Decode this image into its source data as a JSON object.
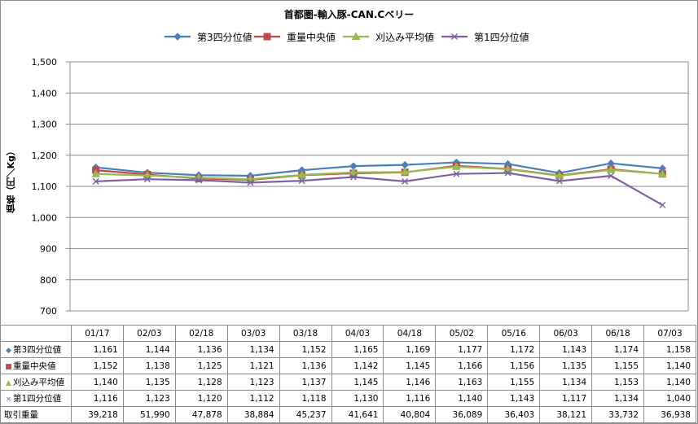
{
  "chart_data": {
    "type": "line",
    "title": "首都圏-輸入豚-CAN.Cベリー",
    "ylabel": "価格（円／Kg）",
    "ylim": [
      700,
      1500
    ],
    "yticks": [
      "1,500",
      "1,400",
      "1,300",
      "1,200",
      "1,100",
      "1,000",
      "900",
      "800",
      "700"
    ],
    "ytick_values": [
      1500,
      1400,
      1300,
      1200,
      1100,
      1000,
      900,
      800,
      700
    ],
    "grid": "horizontal",
    "legend_position": "top",
    "categories": [
      "01/17",
      "02/03",
      "02/18",
      "03/03",
      "03/18",
      "04/03",
      "04/18",
      "05/02",
      "05/16",
      "06/03",
      "06/18",
      "07/03"
    ],
    "series": [
      {
        "name": "第3四分位値",
        "marker": "diamond",
        "marker_symbol": "◆",
        "color": "#4a7ebb",
        "values": [
          1161,
          1144,
          1136,
          1134,
          1152,
          1165,
          1169,
          1177,
          1172,
          1143,
          1174,
          1158
        ],
        "labels": [
          "1,161",
          "1,144",
          "1,136",
          "1,134",
          "1,152",
          "1,165",
          "1,169",
          "1,177",
          "1,172",
          "1,143",
          "1,174",
          "1,158"
        ]
      },
      {
        "name": "重量中央値",
        "marker": "square",
        "marker_symbol": "■",
        "color": "#be4b48",
        "values": [
          1152,
          1138,
          1125,
          1121,
          1136,
          1142,
          1145,
          1166,
          1156,
          1135,
          1155,
          1140
        ],
        "labels": [
          "1,152",
          "1,138",
          "1,125",
          "1,121",
          "1,136",
          "1,142",
          "1,145",
          "1,166",
          "1,156",
          "1,135",
          "1,155",
          "1,140"
        ]
      },
      {
        "name": "刈込み平均値",
        "marker": "triangle",
        "marker_symbol": "▲",
        "color": "#98b954",
        "values": [
          1140,
          1135,
          1128,
          1123,
          1137,
          1145,
          1146,
          1163,
          1155,
          1134,
          1153,
          1140
        ],
        "labels": [
          "1,140",
          "1,135",
          "1,128",
          "1,123",
          "1,137",
          "1,145",
          "1,146",
          "1,163",
          "1,155",
          "1,134",
          "1,153",
          "1,140"
        ]
      },
      {
        "name": "第1四分位値",
        "marker": "x",
        "marker_symbol": "×",
        "color": "#7d60a0",
        "values": [
          1116,
          1123,
          1120,
          1112,
          1118,
          1130,
          1116,
          1140,
          1143,
          1117,
          1134,
          1040
        ],
        "labels": [
          "1,116",
          "1,123",
          "1,120",
          "1,112",
          "1,118",
          "1,130",
          "1,116",
          "1,140",
          "1,143",
          "1,117",
          "1,134",
          "1,040"
        ]
      }
    ],
    "table_extra_row": {
      "name": "取引重量",
      "labels": [
        "39,218",
        "51,990",
        "47,878",
        "38,884",
        "45,237",
        "41,641",
        "40,804",
        "36,089",
        "36,403",
        "38,121",
        "33,732",
        "36,938"
      ]
    }
  }
}
